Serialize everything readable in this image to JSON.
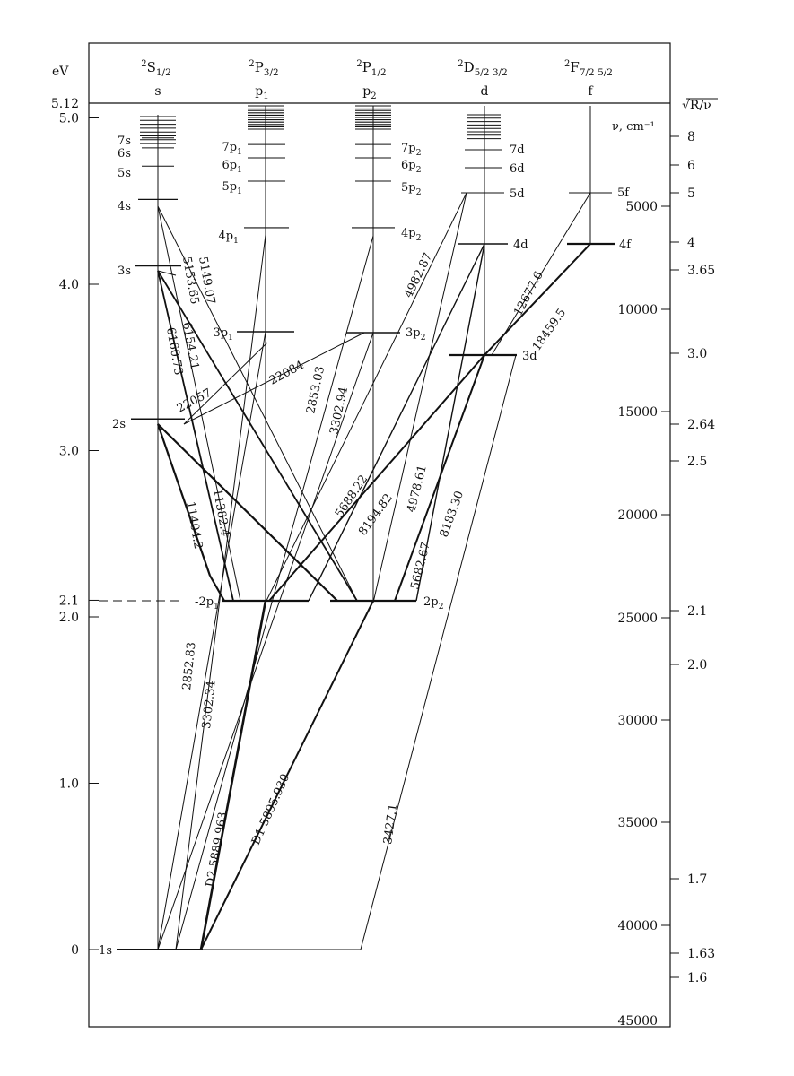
{
  "columns": [
    {
      "term": "2S",
      "sub": "1/2",
      "name": "s"
    },
    {
      "term": "2P",
      "sub": "3/2",
      "name": "p1"
    },
    {
      "term": "2P",
      "sub": "1/2",
      "name": "p2"
    },
    {
      "term": "2D",
      "sub": "5/2  3/2",
      "name": "d"
    },
    {
      "term": "2F",
      "sub": "7/2  5/2",
      "name": "f"
    }
  ],
  "left_axis": {
    "unit": "eV",
    "ticks": [
      {
        "label": "5.12",
        "ev": 5.12
      },
      {
        "label": "5.0",
        "ev": 5.0
      },
      {
        "label": "4.0",
        "ev": 4.0
      },
      {
        "label": "3.0",
        "ev": 3.0
      },
      {
        "label": "2.1",
        "ev": 2.1
      },
      {
        "label": "2.0",
        "ev": 2.0
      },
      {
        "label": "1.0",
        "ev": 1.0
      },
      {
        "label": "0",
        "ev": 0
      }
    ]
  },
  "right_axis": {
    "unit_nu": "ν, cm⁻¹",
    "unit_r": "√R/ν",
    "wavenumber_ticks": [
      "5000",
      "10000",
      "15000",
      "20000",
      "25000",
      "30000",
      "35000",
      "40000",
      "45000"
    ],
    "rv_ticks": [
      "8",
      "6",
      "5",
      "4",
      "3.65",
      "3.0",
      "2.64",
      "2.5",
      "2.1",
      "2.0",
      "1.7",
      "1.63",
      "1.6"
    ]
  },
  "levels": {
    "s": [
      "1s",
      "2s",
      "3s",
      "4s",
      "5s",
      "6s",
      "7s"
    ],
    "p1": [
      "2p1",
      "3p1",
      "4p1",
      "5p1",
      "6p1",
      "7p1"
    ],
    "p2": [
      "2p2",
      "3p2",
      "4p2",
      "5p2",
      "6p2",
      "7p2"
    ],
    "d": [
      "3d",
      "4d",
      "5d",
      "6d",
      "7d"
    ],
    "f": [
      "4f",
      "5f"
    ]
  },
  "level_energies_ev": {
    "1s": 0,
    "2s": 3.19,
    "3s": 4.11,
    "4s": 4.51,
    "5s": 4.71,
    "6s": 4.82,
    "7s": 4.88,
    "2p": 2.1,
    "3p": 3.75,
    "4p": 4.34,
    "5p": 4.62,
    "6p": 4.76,
    "7p": 4.84,
    "3d": 3.62,
    "4d": 4.29,
    "5d": 4.59,
    "6d": 4.74,
    "7d": 4.82,
    "4f": 4.29,
    "5f": 4.59
  },
  "transitions": [
    "6160.73",
    "6154.21",
    "5153.65",
    "5149.07",
    "22084",
    "22057",
    "11382.4",
    "11404.2",
    "2853.03",
    "3302.94",
    "2852.83",
    "3302.34",
    "D2 5889.963",
    "D1 5895.930",
    "4982.87",
    "4978.61",
    "5688.22",
    "5682.67",
    "8194.82",
    "8183.30",
    "12677.6",
    "18459.5",
    "3427.1"
  ]
}
